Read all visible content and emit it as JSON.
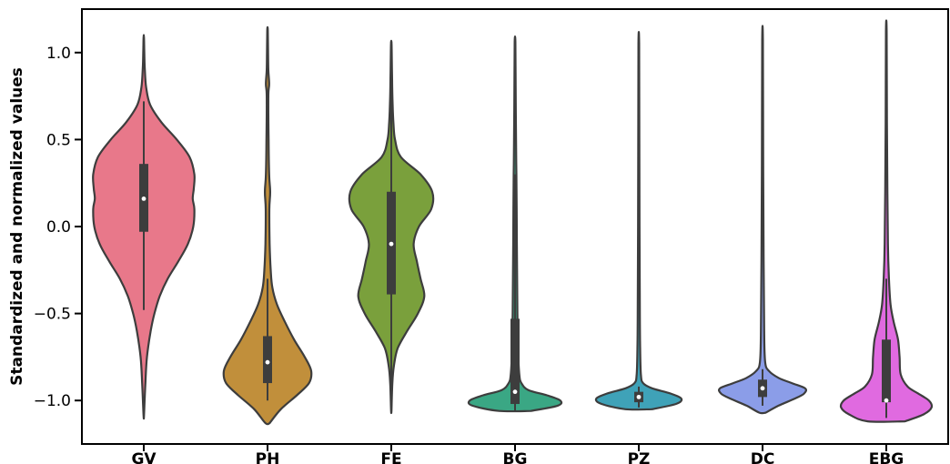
{
  "chart_data": {
    "type": "violin",
    "ylabel": "Standardized and normalized values",
    "xlabel": "",
    "ylim": [
      -1.25,
      1.25
    ],
    "yticks": [
      1.0,
      0.5,
      0.0,
      -0.5,
      -1.0
    ],
    "ytick_labels": [
      "1.0",
      "0.5",
      "0.0",
      "−0.5",
      "−1.0"
    ],
    "categories": [
      "GV",
      "PH",
      "FE",
      "BG",
      "PZ",
      "DC",
      "EBG"
    ],
    "series": [
      {
        "category": "GV",
        "color": "#e8788a",
        "min": -1.09,
        "max": 1.09,
        "q1": -0.03,
        "median": 0.16,
        "q3": 0.36,
        "whisker_low": -0.48,
        "whisker_high": 0.72,
        "density": [
          [
            -1.09,
            0.004
          ],
          [
            -0.9,
            0.03
          ],
          [
            -0.75,
            0.06
          ],
          [
            -0.6,
            0.13
          ],
          [
            -0.5,
            0.2
          ],
          [
            -0.4,
            0.3
          ],
          [
            -0.3,
            0.45
          ],
          [
            -0.2,
            0.65
          ],
          [
            -0.1,
            0.83
          ],
          [
            0.0,
            0.93
          ],
          [
            0.1,
            0.95
          ],
          [
            0.16,
            0.92
          ],
          [
            0.22,
            0.94
          ],
          [
            0.3,
            0.95
          ],
          [
            0.4,
            0.86
          ],
          [
            0.5,
            0.62
          ],
          [
            0.6,
            0.33
          ],
          [
            0.7,
            0.12
          ],
          [
            0.8,
            0.045
          ],
          [
            0.9,
            0.02
          ],
          [
            1.0,
            0.01
          ],
          [
            1.09,
            0.004
          ]
        ]
      },
      {
        "category": "PH",
        "color": "#c18f3b",
        "min": -1.13,
        "max": 1.13,
        "q1": -0.9,
        "median": -0.78,
        "q3": -0.63,
        "whisker_low": -1.0,
        "whisker_high": -0.3,
        "density": [
          [
            -1.13,
            0.04
          ],
          [
            -1.05,
            0.25
          ],
          [
            -0.97,
            0.55
          ],
          [
            -0.9,
            0.78
          ],
          [
            -0.83,
            0.82
          ],
          [
            -0.75,
            0.7
          ],
          [
            -0.65,
            0.5
          ],
          [
            -0.55,
            0.33
          ],
          [
            -0.45,
            0.18
          ],
          [
            -0.35,
            0.09
          ],
          [
            -0.25,
            0.06
          ],
          [
            -0.1,
            0.04
          ],
          [
            0.1,
            0.035
          ],
          [
            0.2,
            0.05
          ],
          [
            0.3,
            0.03
          ],
          [
            0.5,
            0.02
          ],
          [
            0.75,
            0.015
          ],
          [
            0.82,
            0.03
          ],
          [
            0.9,
            0.015
          ],
          [
            1.0,
            0.01
          ],
          [
            1.13,
            0.005
          ]
        ]
      },
      {
        "category": "FE",
        "color": "#7aa03c",
        "min": -1.06,
        "max": 1.06,
        "q1": -0.39,
        "median": -0.1,
        "q3": 0.2,
        "whisker_low": -1.0,
        "whisker_high": 1.0,
        "density": [
          [
            -1.06,
            0.004
          ],
          [
            -0.9,
            0.02
          ],
          [
            -0.8,
            0.05
          ],
          [
            -0.7,
            0.12
          ],
          [
            -0.6,
            0.3
          ],
          [
            -0.5,
            0.5
          ],
          [
            -0.4,
            0.62
          ],
          [
            -0.3,
            0.55
          ],
          [
            -0.2,
            0.48
          ],
          [
            -0.1,
            0.42
          ],
          [
            0.0,
            0.52
          ],
          [
            0.1,
            0.75
          ],
          [
            0.2,
            0.77
          ],
          [
            0.3,
            0.55
          ],
          [
            0.4,
            0.18
          ],
          [
            0.5,
            0.07
          ],
          [
            0.6,
            0.04
          ],
          [
            0.7,
            0.025
          ],
          [
            0.85,
            0.015
          ],
          [
            1.0,
            0.008
          ],
          [
            1.06,
            0.004
          ]
        ]
      },
      {
        "category": "BG",
        "color": "#3aa784",
        "min": -1.06,
        "max": 1.06,
        "q1": -1.02,
        "median": -0.95,
        "q3": -0.53,
        "whisker_low": -1.06,
        "whisker_high": 0.3,
        "density": [
          [
            -1.06,
            0.3
          ],
          [
            -1.03,
            0.8
          ],
          [
            -1.0,
            0.85
          ],
          [
            -0.97,
            0.6
          ],
          [
            -0.94,
            0.25
          ],
          [
            -0.9,
            0.12
          ],
          [
            -0.85,
            0.08
          ],
          [
            -0.7,
            0.055
          ],
          [
            -0.5,
            0.045
          ],
          [
            -0.3,
            0.04
          ],
          [
            -0.1,
            0.035
          ],
          [
            0.1,
            0.03
          ],
          [
            0.3,
            0.025
          ],
          [
            0.5,
            0.018
          ],
          [
            0.8,
            0.012
          ],
          [
            1.06,
            0.006
          ]
        ]
      },
      {
        "category": "PZ",
        "color": "#3fa2b8",
        "min": -1.05,
        "max": 1.05,
        "q1": -1.01,
        "median": -0.98,
        "q3": -0.95,
        "whisker_low": -1.04,
        "whisker_high": -0.92,
        "density": [
          [
            -1.05,
            0.25
          ],
          [
            -1.02,
            0.7
          ],
          [
            -0.99,
            0.8
          ],
          [
            -0.96,
            0.6
          ],
          [
            -0.93,
            0.25
          ],
          [
            -0.9,
            0.08
          ],
          [
            -0.85,
            0.04
          ],
          [
            -0.7,
            0.025
          ],
          [
            -0.4,
            0.018
          ],
          [
            0.0,
            0.014
          ],
          [
            0.5,
            0.01
          ],
          [
            1.05,
            0.006
          ]
        ]
      },
      {
        "category": "DC",
        "color": "#8b9de8",
        "min": -1.07,
        "max": 1.07,
        "q1": -0.98,
        "median": -0.93,
        "q3": -0.88,
        "whisker_low": -1.03,
        "whisker_high": -0.82,
        "density": [
          [
            -1.07,
            0.06
          ],
          [
            -1.03,
            0.3
          ],
          [
            -0.99,
            0.6
          ],
          [
            -0.96,
            0.78
          ],
          [
            -0.93,
            0.8
          ],
          [
            -0.9,
            0.55
          ],
          [
            -0.87,
            0.3
          ],
          [
            -0.83,
            0.12
          ],
          [
            -0.78,
            0.05
          ],
          [
            -0.6,
            0.03
          ],
          [
            -0.2,
            0.02
          ],
          [
            0.4,
            0.012
          ],
          [
            1.07,
            0.006
          ]
        ]
      },
      {
        "category": "EBG",
        "color": "#e06ae0",
        "min": -1.12,
        "max": 1.12,
        "q1": -1.01,
        "median": -1.0,
        "q3": -0.65,
        "whisker_low": -1.1,
        "whisker_high": -0.3,
        "density": [
          [
            -1.12,
            0.35
          ],
          [
            -1.08,
            0.7
          ],
          [
            -1.04,
            0.85
          ],
          [
            -1.0,
            0.8
          ],
          [
            -0.96,
            0.6
          ],
          [
            -0.92,
            0.4
          ],
          [
            -0.85,
            0.27
          ],
          [
            -0.75,
            0.25
          ],
          [
            -0.65,
            0.22
          ],
          [
            -0.55,
            0.14
          ],
          [
            -0.45,
            0.08
          ],
          [
            -0.3,
            0.05
          ],
          [
            -0.1,
            0.03
          ],
          [
            0.2,
            0.02
          ],
          [
            0.6,
            0.012
          ],
          [
            1.12,
            0.006
          ]
        ]
      }
    ]
  }
}
